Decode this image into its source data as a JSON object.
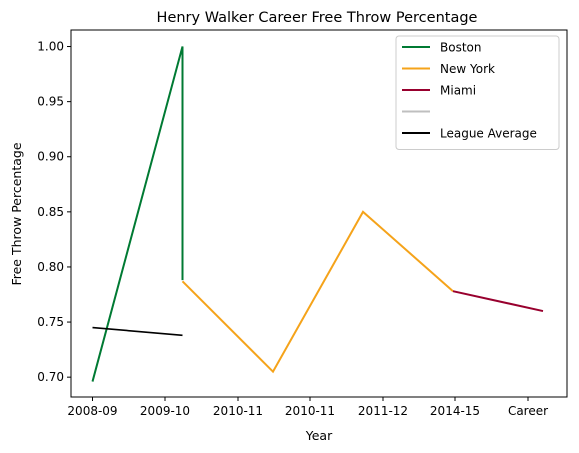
{
  "chart_data": {
    "type": "line",
    "title": "Henry Walker  Career Free Throw Percentage",
    "xlabel": "Year",
    "ylabel": "Free Throw Percentage",
    "x_tick_labels": [
      "2008-09",
      "2009-10",
      "2010-11",
      "2010-11",
      "2011-12",
      "2014-15",
      "Career"
    ],
    "ylim": [
      0.682,
      1.015
    ],
    "y_ticks": [
      0.7,
      0.75,
      0.8,
      0.85,
      0.9,
      0.95,
      1.0
    ],
    "y_tick_labels": [
      "0.70",
      "0.75",
      "0.80",
      "0.85",
      "0.90",
      "0.95",
      "1.00"
    ],
    "grid": false,
    "legend_position": "top-right",
    "series": [
      {
        "name": "Boston",
        "color": "#007a33",
        "points": [
          {
            "x": "2008-09",
            "y": 0.696
          },
          {
            "x": "2009-10",
            "y": 1.0
          },
          {
            "x": "2009-10",
            "y": 0.788
          }
        ]
      },
      {
        "name": "New York",
        "color": "#f5a31a",
        "points": [
          {
            "x": "2009-10",
            "y": 0.787
          },
          {
            "x": "2010-11",
            "y": 0.705
          },
          {
            "x": "2011-12",
            "y": 0.85
          },
          {
            "x": "2014-15",
            "y": 0.778
          }
        ]
      },
      {
        "name": "Miami",
        "color": "#98002e",
        "points": [
          {
            "x": "2014-15",
            "y": 0.778
          },
          {
            "x": "Career",
            "y": 0.76
          }
        ]
      },
      {
        "name": "",
        "color": "#bfbfbf",
        "points": []
      },
      {
        "name": "League Average",
        "color": "#000000",
        "points": [
          {
            "x": "2008-09",
            "y": 0.745
          },
          {
            "x": "2009-10",
            "y": 0.738
          }
        ]
      }
    ]
  }
}
